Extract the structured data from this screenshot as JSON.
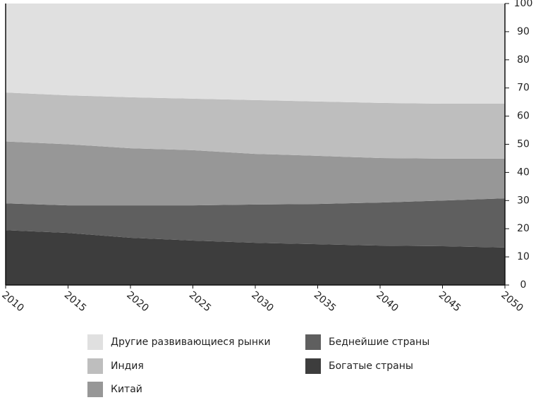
{
  "chart_data": {
    "type": "stacked-area",
    "x": [
      2010,
      2015,
      2020,
      2025,
      2030,
      2035,
      2040,
      2045,
      2050
    ],
    "xlim": [
      2010,
      2050
    ],
    "xticks": [
      2010,
      2015,
      2020,
      2025,
      2030,
      2035,
      2040,
      2045,
      2050
    ],
    "ylim": [
      0,
      100
    ],
    "yticks": [
      0,
      10,
      20,
      30,
      40,
      50,
      60,
      70,
      80,
      90,
      100
    ],
    "series": [
      {
        "name": "Богатые страны",
        "color": "#3d3d3d",
        "values": [
          19.5,
          18.5,
          16.8,
          15.8,
          15,
          14.5,
          14,
          13.8,
          13.3
        ]
      },
      {
        "name": "Беднейшие страны",
        "color": "#5f5f5f",
        "values": [
          9.5,
          9.8,
          11.5,
          12.5,
          13.6,
          14.3,
          15.3,
          16.2,
          17.5
        ]
      },
      {
        "name": "Китай",
        "color": "#979797",
        "values": [
          22,
          21.7,
          20.3,
          19.6,
          18,
          17.1,
          15.8,
          14.9,
          14.1
        ]
      },
      {
        "name": "Индия",
        "color": "#bebebe",
        "values": [
          17.4,
          17.4,
          18.1,
          18.3,
          19.1,
          19.3,
          19.6,
          19.5,
          19.5
        ]
      },
      {
        "name": "Другие развивающиеся рынки",
        "color": "#e0e0e0",
        "values": [
          31.6,
          32.6,
          33.3,
          33.8,
          34.3,
          34.8,
          35.3,
          35.6,
          35.6
        ]
      }
    ]
  }
}
